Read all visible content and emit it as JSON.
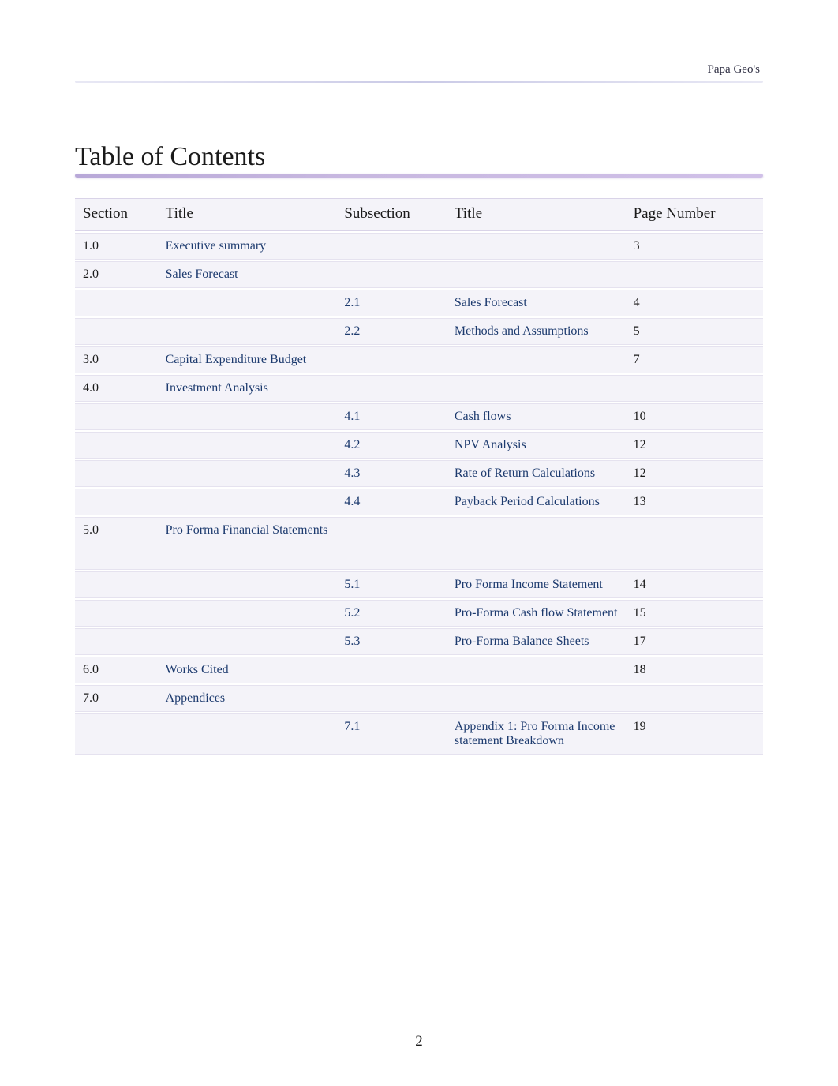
{
  "header": {
    "company": "Papa Geo's"
  },
  "title": "Table of Contents",
  "columns": {
    "section": "Section",
    "title": "Title",
    "subsection": "Subsection",
    "subtitle": "Title",
    "page": "Page Number"
  },
  "rows": {
    "r1": {
      "section": "1.0",
      "title": "Executive summary",
      "sub": "",
      "subtitle": "",
      "page": "3"
    },
    "r2": {
      "section": "2.0",
      "title": "Sales Forecast",
      "sub": "",
      "subtitle": "",
      "page": ""
    },
    "r3": {
      "section": "",
      "title": "",
      "sub": "2.1",
      "subtitle": "Sales Forecast",
      "page": "4"
    },
    "r4": {
      "section": "",
      "title": "",
      "sub": "2.2",
      "subtitle": "Methods and Assumptions",
      "page": "5"
    },
    "r5": {
      "section": "3.0",
      "title": "Capital Expenditure Budget",
      "sub": "",
      "subtitle": "",
      "page": "7"
    },
    "r6": {
      "section": "4.0",
      "title": "Investment Analysis",
      "sub": "",
      "subtitle": "",
      "page": ""
    },
    "r7": {
      "section": "",
      "title": "",
      "sub": "4.1",
      "subtitle": "Cash flows",
      "page": "10"
    },
    "r8": {
      "section": "",
      "title": "",
      "sub": "4.2",
      "subtitle": "NPV Analysis",
      "page": "12"
    },
    "r9": {
      "section": "",
      "title": "",
      "sub": "4.3",
      "subtitle": "Rate of Return Calculations",
      "page": "12"
    },
    "r10": {
      "section": "",
      "title": "",
      "sub": "4.4",
      "subtitle": "Payback Period Calculations",
      "page": "13"
    },
    "r11": {
      "section": "5.0",
      "title": "Pro Forma Financial Statements",
      "sub": "",
      "subtitle": "",
      "page": ""
    },
    "r12": {
      "section": "",
      "title": "",
      "sub": "5.1",
      "subtitle": "Pro Forma Income Statement",
      "page": "14"
    },
    "r13": {
      "section": "",
      "title": "",
      "sub": "5.2",
      "subtitle": "Pro-Forma Cash flow Statement",
      "page": "15"
    },
    "r14": {
      "section": "",
      "title": "",
      "sub": "5.3",
      "subtitle": "Pro-Forma Balance Sheets",
      "page": "17"
    },
    "r15": {
      "section": "6.0",
      "title": "Works Cited",
      "sub": "",
      "subtitle": "",
      "page": "18"
    },
    "r16": {
      "section": "7.0",
      "title": "Appendices",
      "sub": "",
      "subtitle": "",
      "page": ""
    },
    "r17": {
      "section": "",
      "title": "",
      "sub": "7.1",
      "subtitle": "Appendix 1: Pro Forma Income statement Breakdown",
      "page": "19"
    }
  },
  "footer": {
    "page_number": "2"
  },
  "style": {
    "type": "table",
    "background_color": "#ffffff",
    "row_background": "#f4f3f9",
    "row_border": "rgba(200,195,220,0.35)",
    "title_fontsize": 34,
    "header_fontsize": 19,
    "body_fontsize": 16,
    "link_color": "#1c3a6e",
    "text_color": "#1a1a1a",
    "title_underline_color": "#b8a8d8",
    "header_rule_color": "rgba(180,180,220,0.6)"
  }
}
